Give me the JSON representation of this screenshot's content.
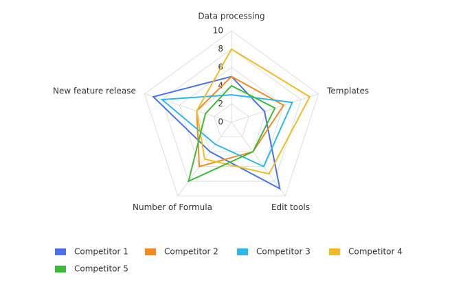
{
  "chart_data": {
    "type": "radar",
    "categories": [
      "Data processing",
      "Templates",
      "Edit tools",
      "Number of Formula",
      "New feature release"
    ],
    "ylim": [
      0,
      10
    ],
    "yticks": [
      0,
      2,
      4,
      6,
      8,
      10
    ],
    "grid": true,
    "legend": "bottom",
    "series": [
      {
        "name": "Competitor 1",
        "color": "#4a72e8",
        "values": [
          5,
          3.8,
          9,
          4,
          9
        ]
      },
      {
        "name": "Competitor 2",
        "color": "#f28a1f",
        "values": [
          5,
          6,
          4,
          6,
          4
        ]
      },
      {
        "name": "Competitor 3",
        "color": "#2ab8ec",
        "values": [
          3,
          7,
          6,
          3,
          8
        ]
      },
      {
        "name": "Competitor 4",
        "color": "#f0bc1f",
        "values": [
          8,
          9,
          7,
          5,
          4
        ]
      },
      {
        "name": "Competitor 5",
        "color": "#3dbb38",
        "values": [
          4,
          5,
          4,
          8,
          3
        ]
      }
    ]
  }
}
